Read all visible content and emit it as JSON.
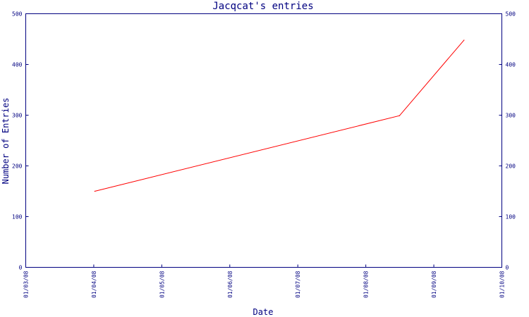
{
  "chart_data": {
    "type": "line",
    "title": "Jacqcat's entries",
    "xlabel": "Date",
    "ylabel": "Number of Entries",
    "x_ticks": [
      "01/03/08",
      "01/04/08",
      "01/05/08",
      "01/06/08",
      "01/07/08",
      "01/08/08",
      "01/09/08",
      "01/10/08"
    ],
    "y_ticks": [
      0,
      100,
      200,
      300,
      400,
      500
    ],
    "ylim": [
      0,
      500
    ],
    "xlim": [
      "2008-03-01",
      "2008-10-01"
    ],
    "series": [
      {
        "color": "#ff0000",
        "points": [
          {
            "x": "2008-04-01",
            "y": 150
          },
          {
            "x": "2008-08-16",
            "y": 299
          },
          {
            "x": "2008-09-14",
            "y": 448
          }
        ]
      }
    ],
    "grid": false,
    "right_axis": true
  },
  "colors": {
    "axis": "#000080",
    "line": "#ff0000",
    "background": "#ffffff"
  }
}
